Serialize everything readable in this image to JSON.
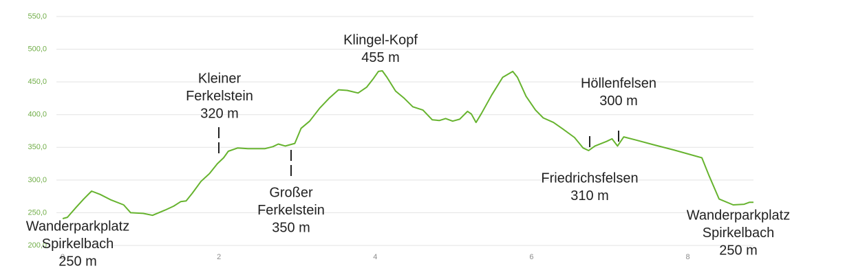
{
  "chart_data": {
    "type": "line",
    "x": [
      0,
      0.06,
      0.17,
      0.27,
      0.37,
      0.48,
      0.61,
      0.78,
      0.87,
      1.03,
      1.15,
      1.31,
      1.42,
      1.51,
      1.58,
      1.66,
      1.77,
      1.88,
      1.98,
      2.06,
      2.12,
      2.24,
      2.37,
      2.59,
      2.69,
      2.76,
      2.85,
      2.97,
      3.05,
      3.16,
      3.29,
      3.41,
      3.53,
      3.64,
      3.78,
      3.89,
      3.97,
      4.04,
      4.09,
      4.15,
      4.26,
      4.37,
      4.48,
      4.61,
      4.73,
      4.82,
      4.9,
      4.99,
      5.08,
      5.18,
      5.23,
      5.29,
      5.36,
      5.49,
      5.63,
      5.76,
      5.82,
      5.93,
      6.05,
      6.15,
      6.28,
      6.4,
      6.55,
      6.66,
      6.73,
      6.81,
      6.96,
      7.03,
      7.1,
      7.18,
      7.34,
      7.56,
      7.82,
      8.18,
      8.27,
      8.4,
      8.58,
      8.72,
      8.79,
      8.84
    ],
    "series": [
      {
        "color": "#66b32e",
        "values": [
          241,
          243,
          258,
          271,
          283,
          278,
          270,
          262,
          250,
          249,
          246,
          254,
          260,
          267,
          268,
          280,
          298,
          310,
          325,
          334,
          344,
          349,
          348,
          348,
          351,
          355,
          352,
          356,
          379,
          390,
          410,
          425,
          438,
          437,
          433,
          442,
          454,
          466,
          467,
          457,
          436,
          425,
          412,
          407,
          392,
          391,
          394,
          390,
          393,
          405,
          401,
          388,
          402,
          430,
          457,
          466,
          457,
          428,
          407,
          395,
          388,
          378,
          365,
          349,
          345,
          352,
          359,
          363,
          352,
          366,
          361,
          354,
          346,
          334,
          307,
          271,
          262,
          263,
          266,
          266
        ]
      }
    ],
    "xlim": [
      -0.08,
      8.84
    ],
    "xticks": [
      0,
      2,
      4,
      6,
      8
    ],
    "ylim": [
      200,
      550
    ],
    "yticks": [
      {
        "value": 200,
        "label": "200,0"
      },
      {
        "value": 250,
        "label": "250,0"
      },
      {
        "value": 300,
        "label": "300,0"
      },
      {
        "value": 350,
        "label": "350,0"
      },
      {
        "value": 400,
        "label": "400,0"
      },
      {
        "value": 450,
        "label": "450,0"
      },
      {
        "value": 500,
        "label": "500,0"
      },
      {
        "value": 550,
        "label": "550,0"
      }
    ],
    "grid": true,
    "annotations": [
      {
        "lines": [
          "Wanderparkplatz",
          "Spirkelbach",
          "250 m"
        ]
      },
      {
        "lines": [
          "Kleiner",
          "Ferkelstein",
          "320 m"
        ]
      },
      {
        "lines": [
          "Großer",
          "Ferkelstein",
          "350 m"
        ]
      },
      {
        "lines": [
          "Klingel-Kopf",
          "455 m"
        ]
      },
      {
        "lines": [
          "Höllenfelsen",
          "300 m"
        ]
      },
      {
        "lines": [
          "Friedrichsfelsen",
          "310 m"
        ]
      },
      {
        "lines": [
          "Wanderparkplatz",
          "Spirkelbach",
          "250 m"
        ]
      }
    ]
  }
}
